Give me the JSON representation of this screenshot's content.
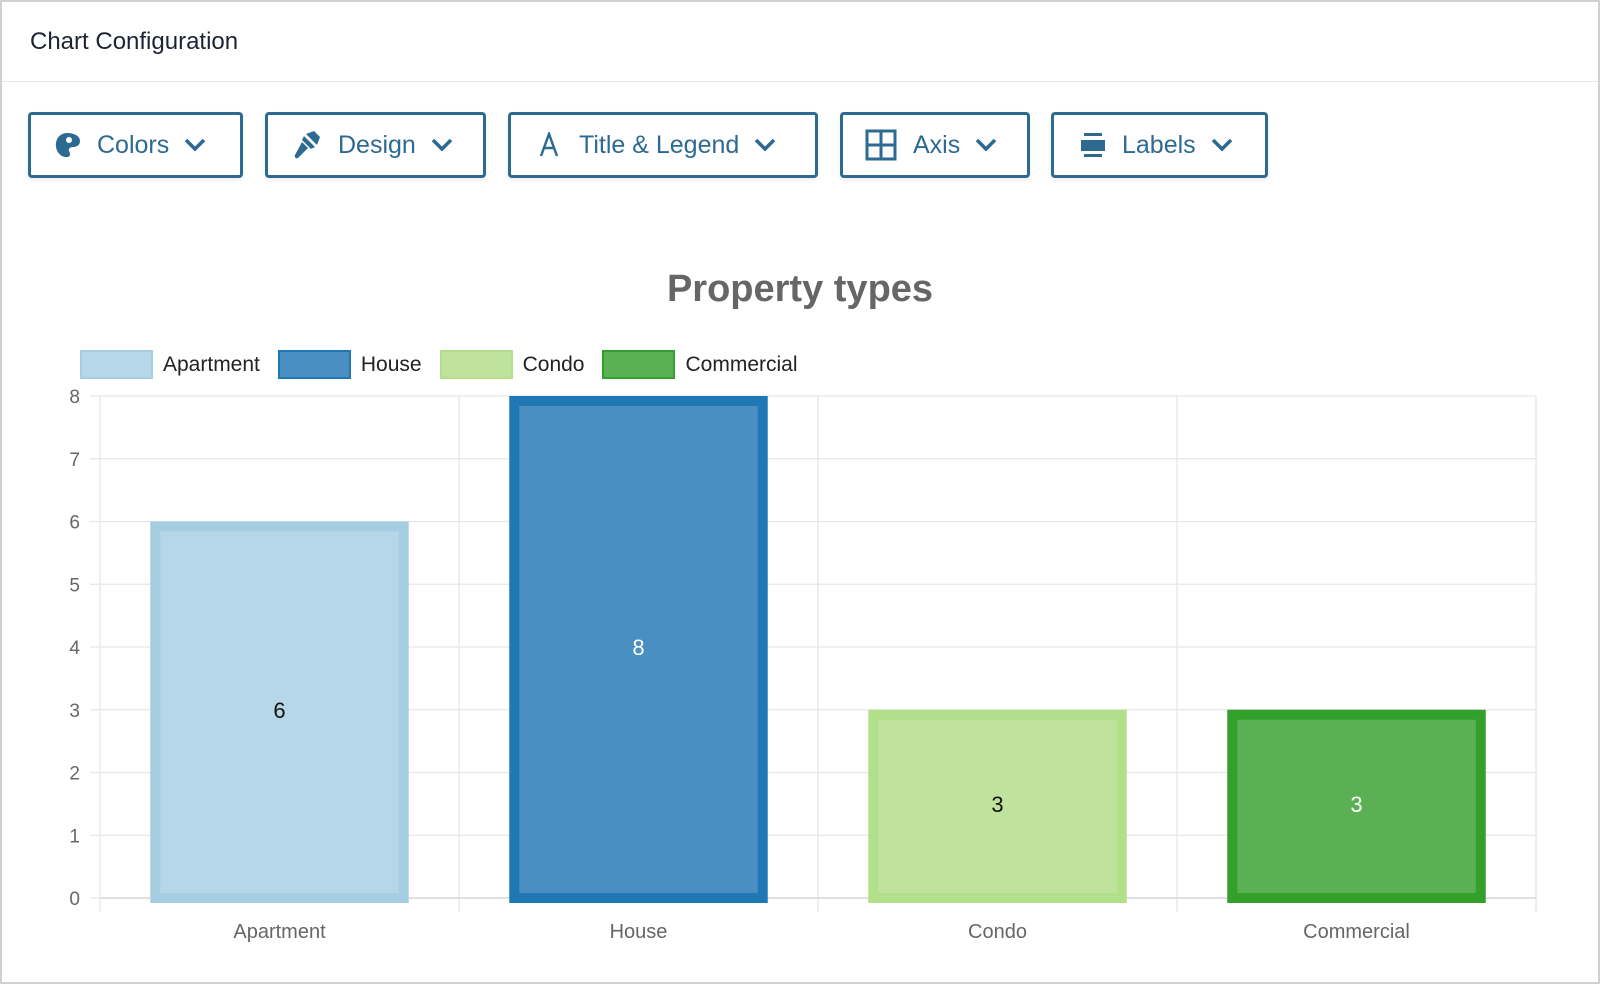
{
  "header": {
    "title": "Chart Configuration"
  },
  "toolbar": [
    {
      "label": "Colors",
      "icon": "palette-icon"
    },
    {
      "label": "Design",
      "icon": "paintbrush-icon"
    },
    {
      "label": "Title & Legend",
      "icon": "font-icon"
    },
    {
      "label": "Axis",
      "icon": "grid-icon"
    },
    {
      "label": "Labels",
      "icon": "labels-icon"
    }
  ],
  "colors": {
    "accent": "#2d6a92"
  },
  "chart_data": {
    "type": "bar",
    "title": "Property types",
    "categories": [
      "Apartment",
      "House",
      "Condo",
      "Commercial"
    ],
    "values": [
      6,
      8,
      3,
      3
    ],
    "data_labels": [
      "6",
      "8",
      "3",
      "3"
    ],
    "fill_colors": [
      "#b6d7e8",
      "#4a8fc2",
      "#bfe39c",
      "#5cb054"
    ],
    "border_colors": [
      "#a6cee3",
      "#1f78b4",
      "#b2df8a",
      "#33a02c"
    ],
    "label_colors": [
      "#111111",
      "#ffffff",
      "#111111",
      "#ffffff"
    ],
    "legend": [
      "Apartment",
      "House",
      "Condo",
      "Commercial"
    ],
    "legend_position": "top-left",
    "yticks": [
      "0",
      "1",
      "2",
      "3",
      "4",
      "5",
      "6",
      "7",
      "8"
    ],
    "ylim": [
      0,
      8
    ],
    "grid": true,
    "xlabel": "",
    "ylabel": ""
  }
}
